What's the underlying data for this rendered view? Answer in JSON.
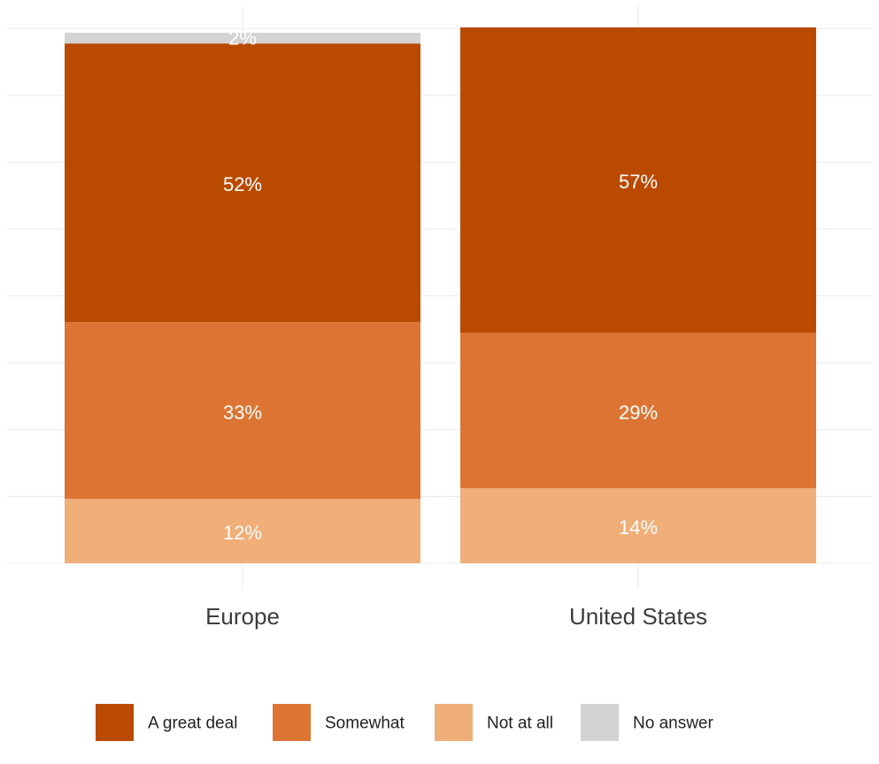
{
  "chart_data": {
    "type": "bar",
    "stacked": true,
    "categories": [
      "Europe",
      "United States"
    ],
    "series": [
      {
        "name": "Not at all",
        "values": [
          12,
          14
        ],
        "labels": [
          "12%",
          "14%"
        ],
        "color": "#f0ae78"
      },
      {
        "name": "Somewhat",
        "values": [
          33,
          29
        ],
        "labels": [
          "33%",
          "29%"
        ],
        "color": "#dc7533"
      },
      {
        "name": "A great deal",
        "values": [
          52,
          57
        ],
        "labels": [
          "52%",
          "57%"
        ],
        "color": "#b94a00"
      },
      {
        "name": "No answer",
        "values": [
          2,
          0
        ],
        "labels": [
          "2%",
          ""
        ],
        "color": "#d3d3d3"
      }
    ],
    "legend_order": [
      "A great deal",
      "Somewhat",
      "Not at all",
      "No answer"
    ],
    "ylim": [
      0,
      100
    ],
    "grid": true,
    "legend_position": "bottom",
    "title": "",
    "xlabel": "",
    "ylabel": ""
  }
}
